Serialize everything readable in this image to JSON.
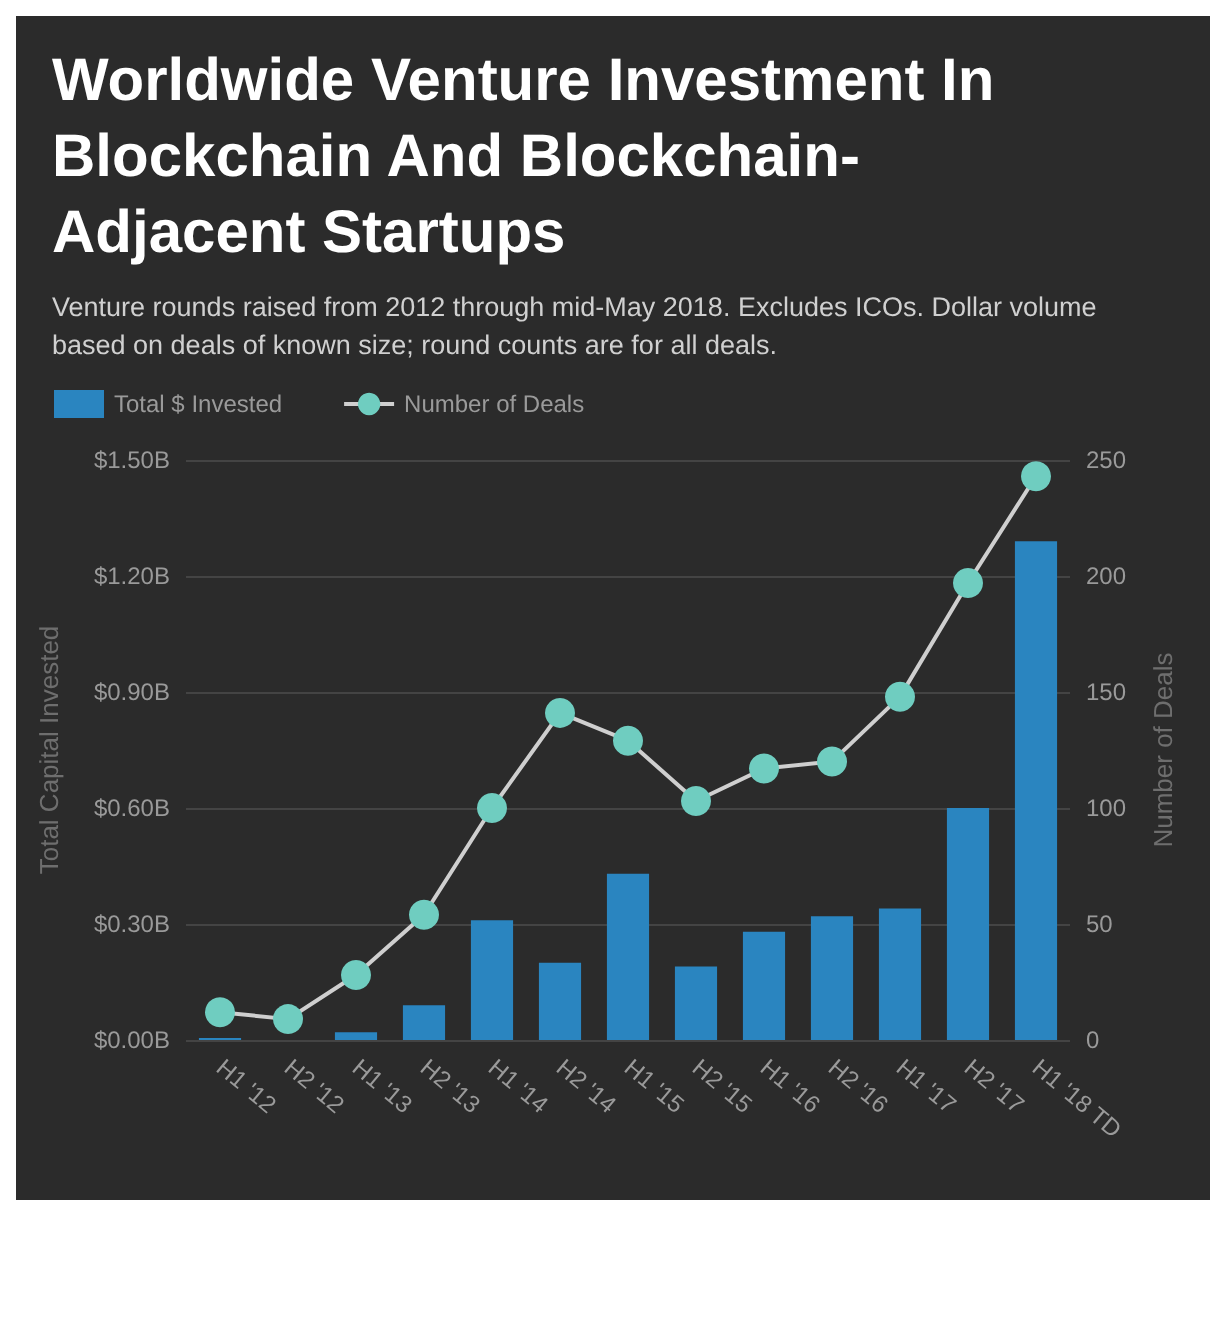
{
  "chart_data": {
    "type": "bar",
    "title": "Worldwide Venture Investment In Blockchain And Blockchain-Adjacent Startups",
    "subtitle": "Venture rounds raised from 2012 through mid-May 2018. Excludes ICOs. Dollar volume based on deals of known size; round counts are for all deals.",
    "categories": [
      "H1 '12",
      "H2 '12",
      "H1 '13",
      "H2 '13",
      "H1 '14",
      "H2 '14",
      "H1 '15",
      "H2 '15",
      "H1 '16",
      "H2 '16",
      "H1 '17",
      "H2 '17",
      "H1 '18 TD"
    ],
    "series": [
      {
        "name": "Total $ Invested",
        "color": "#2a85c0",
        "values": [
          0.005,
          0,
          0.02,
          0.09,
          0.31,
          0.2,
          0.43,
          0.19,
          0.28,
          0.32,
          0.34,
          0.6,
          1.29
        ]
      },
      {
        "name": "Number of Deals",
        "type": "line",
        "axis": "y2",
        "color": "#6fcdc0",
        "marker": "circle",
        "values": [
          12,
          9,
          28,
          54,
          100,
          141,
          129,
          103,
          117,
          120,
          148,
          197,
          243
        ]
      }
    ],
    "ylabel": "Total Capital Invested",
    "y2label": "Number of Deals",
    "ylim": [
      0,
      1.5
    ],
    "yticks": [
      {
        "value": 0,
        "label": "$0.00B"
      },
      {
        "value": 0.3,
        "label": "$0.30B"
      },
      {
        "value": 0.6,
        "label": "$0.60B"
      },
      {
        "value": 0.9,
        "label": "$0.90B"
      },
      {
        "value": 1.2,
        "label": "$1.20B"
      },
      {
        "value": 1.5,
        "label": "$1.50B"
      }
    ],
    "y2lim": [
      0,
      250
    ],
    "y2ticks": [
      0,
      50,
      100,
      150,
      200,
      250
    ],
    "grid": "y",
    "legend": "top left"
  }
}
